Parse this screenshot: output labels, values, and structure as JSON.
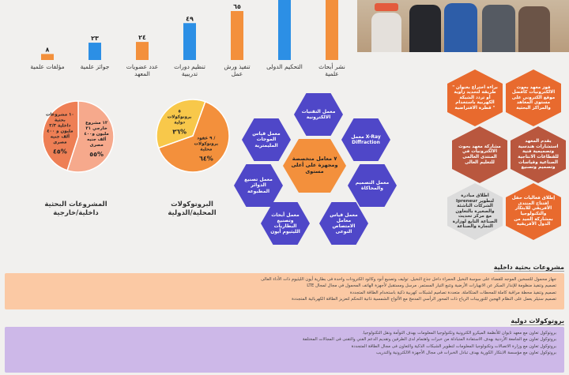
{
  "bar_chart": {
    "categories": [
      "نشر أبحاث علمية",
      "التحكيم الدولى",
      "تنفيذ ورش عمل",
      "تنظيم دورات تدريبية",
      "عدد عضويات المعهد",
      "جوائز علمية",
      "مؤلفات علمية"
    ],
    "values": [
      null,
      null,
      65,
      49,
      24,
      23,
      8
    ],
    "value_labels": [
      "",
      "",
      "٦٥",
      "٤٩",
      "٢٤",
      "٢٣",
      "٨"
    ],
    "colors": [
      "#f3903c",
      "#2c8fe5",
      "#f3903c",
      "#2c8fe5",
      "#f3903c",
      "#2c8fe5",
      "#f3903c"
    ]
  },
  "hexes_center": [
    "معمل التقنيات الالكترونية",
    "معمل قياس الموجات المليمترية",
    "معمل X-Ray Diffraction",
    "٧ معامل متخصصة ومجهزة على أعلى مستوى",
    "معمل تصنيع الدوائر المطبوعة",
    "معمل التصميم والمحاكاة",
    "معمل أبحاث وتصنيع البطاريات الليثيوم أيون",
    "معمل قياس معامل الامتصاص النوعى"
  ],
  "hexes_right": [
    "فوز معهد بحوث الالكترونيات كأفضل موقع الكتروني على مستوى المعاهد والمراكز البحثية",
    "براءة اختراع بعنوان \" طريقة لتحديد زاوية أو تردد الشبكة الكهربية باستخدام قطرة الافتراضية \"",
    "يقدم المعهد استشارات هندسية وتصميمية فنية للقطاعات الانتاجية الصناعية وقياسات وتصميم وتصنيع",
    "مشاركة معهد بحوث الالكترونيات في المنتدى العالمى للتعليم العالى",
    "إطلاق فعاليات حفل افتتاح المنتدى الأفريقي للابتكار والتكنولوجيا بمشاركة الجيد من الدول الأفريقية",
    "اطلاق مبادرة Ipreneur لتطوير الشركات الناشئة والصغيرة بالتعاون مع مركز تحديث الصناعة التابع لوزارة التجارة والصناعة"
  ],
  "pie_intl": {
    "title_line1": "البروتوكولات",
    "title_line2": "المحلية/الدولية",
    "slices": [
      {
        "label": "٩ عقود / بروتوكولات محلية",
        "pct_label": "٦٤%",
        "value": 64,
        "color": "#f3903c"
      },
      {
        "label": "٥ بروتوكولات دولية",
        "pct_label": "٣٦%",
        "value": 36,
        "color": "#f8c84a"
      }
    ]
  },
  "pie_projects": {
    "title_line1": "المشروعات البحثية",
    "title_line2": "داخلية/خارجية",
    "slices": [
      {
        "label": "١٢ مشروع خارجي ٣١ مليون و٤٠٠ ألف جنيه مصرى",
        "pct_label": "٥٥%",
        "value": 55,
        "color": "#f6a98c"
      },
      {
        "label": "١٠ مشروعات بحثية داخلية ٢/٣ مليون و ٤٠٠ ألف جنيه مصرى",
        "pct_label": "٤٥%",
        "value": 45,
        "color": "#ee7f55"
      }
    ]
  },
  "local_section": {
    "title": "مشروعات بحثية داخلية",
    "lines": [
      "جهاز محمول للتسخين الموجه للقضاء على سوسة النخيل الحمراء داخل جذع النخيل.   توليف وتصنيع أنود وكاثود الكترودات واحدة فى بطارية أيون الليثيوم ذات الأداء العالى",
      "تصميم وتنفيذ منظومة للإنذار المبكر عن الانهيارات الأرضية وتتبع التيار المستمر.   مرسل ومستقبل لأجهزة الهاتف المحمول في مجال لمجال LTE",
      "تصميم وتنفيذ محطة مراقبة كاملة للمحطات المتكاملة.   متعددة تصاميم لشبكات كهربية ذكية باستخدام الطاقة المتجددة",
      "تصميم ستيلر يعمل على النظام الهجين للتوربينات الرياح ذات المحور الرأسي المدمج مع الألواح الشمسية ذاتية التحكم لتعزيز الطاقة الكهربائية المتجددة"
    ]
  },
  "intl_section": {
    "title": "بروتوكولات دولية",
    "lines": [
      "بروتوكول تعاون مع معهد تايوان للأنظمة الميكرو الكترونية وتكنولوجيا المعلومات بهدف التوأمة ونقل التكنولوجيا.",
      "بروتوكول تعاون مع الجامعة الأردنية بهدف الاستفادة المتبادلة من خبرات واهتمام لدى الطرفين وتقديم الدعم الفني والتقنى فى المجالات المختلفة",
      "بروتوكول تعاون مع وزارة الاتصالات وتكنولوجيا المعلومات لتطوير الشبكات الذكية والتعاون فى مجال الطاقة المتجددة",
      "بروتوكول تعاون مع مؤسسة الابتكار الكورية بهدف تبادل الخبرات فى مجال الأجهزة الالكترونية والتدريب"
    ]
  }
}
